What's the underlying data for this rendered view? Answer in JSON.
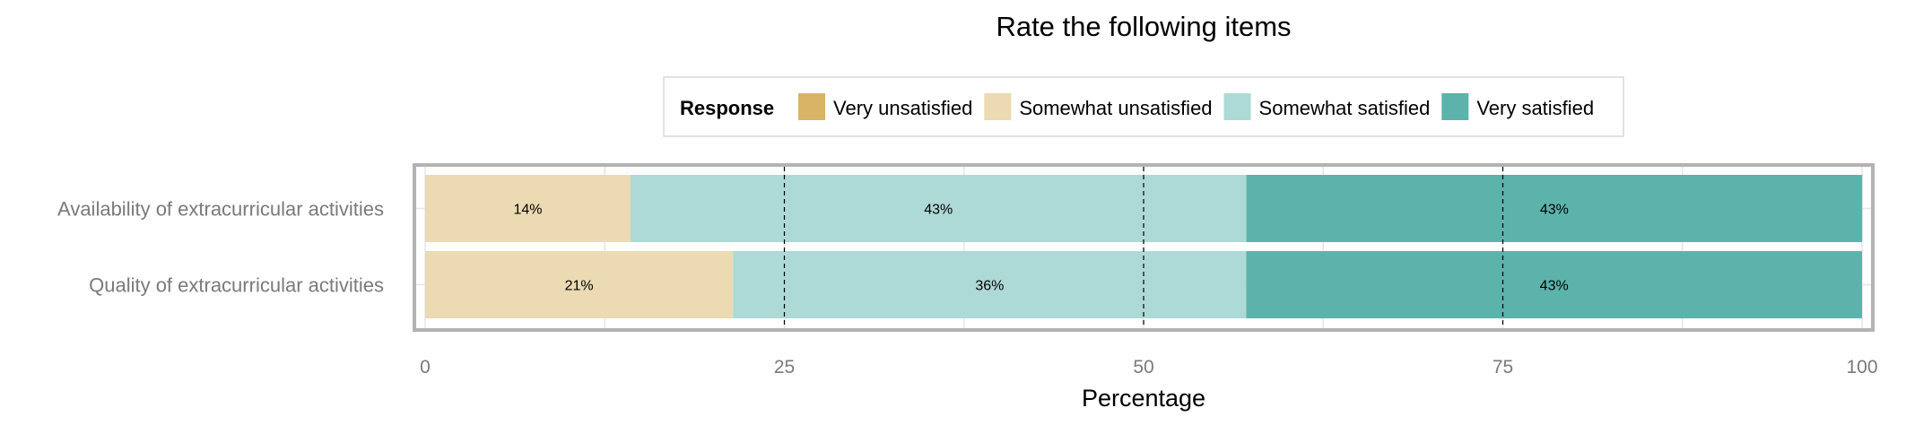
{
  "chart_data": {
    "type": "bar",
    "orientation": "horizontal",
    "stacked": true,
    "title": "Rate the following items",
    "xlabel": "Percentage",
    "ylabel": "",
    "xlim": [
      0,
      100
    ],
    "x_ticks": [
      "0",
      "25",
      "50",
      "75",
      "100"
    ],
    "grid": true,
    "legend": {
      "title": "Response",
      "position": "top",
      "entries": [
        "Very unsatisfied",
        "Somewhat unsatisfied",
        "Somewhat satisfied",
        "Very satisfied"
      ]
    },
    "categories": [
      "Availability of extracurricular activities",
      "Quality of extracurricular activities"
    ],
    "series": [
      {
        "name": "Very unsatisfied",
        "color": "#d9b366",
        "values": [
          0,
          0
        ],
        "labels": [
          "",
          ""
        ]
      },
      {
        "name": "Somewhat unsatisfied",
        "color": "#ebdab2",
        "values": [
          14.29,
          21.43
        ],
        "labels": [
          "14%",
          "21%"
        ]
      },
      {
        "name": "Somewhat satisfied",
        "color": "#add9d6",
        "values": [
          42.86,
          35.71
        ],
        "labels": [
          "43%",
          "36%"
        ]
      },
      {
        "name": "Very satisfied",
        "color": "#5cb3ac",
        "values": [
          42.86,
          42.86
        ],
        "labels": [
          "43%",
          "43%"
        ]
      }
    ]
  }
}
